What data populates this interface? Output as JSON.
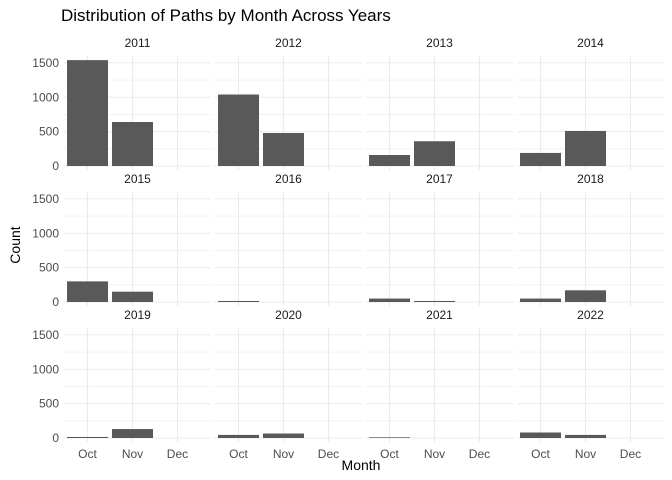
{
  "chart_data": {
    "type": "bar",
    "title": "Distribution of Paths by Month Across Years",
    "xlabel": "Month",
    "ylabel": "Count",
    "categories": [
      "Oct",
      "Nov",
      "Dec"
    ],
    "ylim": [
      0,
      1600
    ],
    "yticks": [
      "0",
      "500",
      "1000",
      "1500"
    ],
    "grid": true,
    "facets": [
      {
        "label": "2011",
        "values": [
          1540,
          640,
          0
        ]
      },
      {
        "label": "2012",
        "values": [
          1040,
          480,
          0
        ]
      },
      {
        "label": "2013",
        "values": [
          160,
          360,
          0
        ]
      },
      {
        "label": "2014",
        "values": [
          190,
          510,
          0
        ]
      },
      {
        "label": "2015",
        "values": [
          300,
          150,
          0
        ]
      },
      {
        "label": "2016",
        "values": [
          15,
          0,
          0
        ]
      },
      {
        "label": "2017",
        "values": [
          50,
          15,
          0
        ]
      },
      {
        "label": "2018",
        "values": [
          50,
          170,
          0
        ]
      },
      {
        "label": "2019",
        "values": [
          15,
          130,
          0
        ]
      },
      {
        "label": "2020",
        "values": [
          45,
          65,
          0
        ]
      },
      {
        "label": "2021",
        "values": [
          10,
          0,
          0
        ]
      },
      {
        "label": "2022",
        "values": [
          80,
          45,
          0
        ]
      }
    ],
    "colors": {
      "bar": "#595959",
      "grid": "#ebebeb",
      "tick_text": "#4d4d4d",
      "strip_text": "#1a1a1a"
    }
  }
}
